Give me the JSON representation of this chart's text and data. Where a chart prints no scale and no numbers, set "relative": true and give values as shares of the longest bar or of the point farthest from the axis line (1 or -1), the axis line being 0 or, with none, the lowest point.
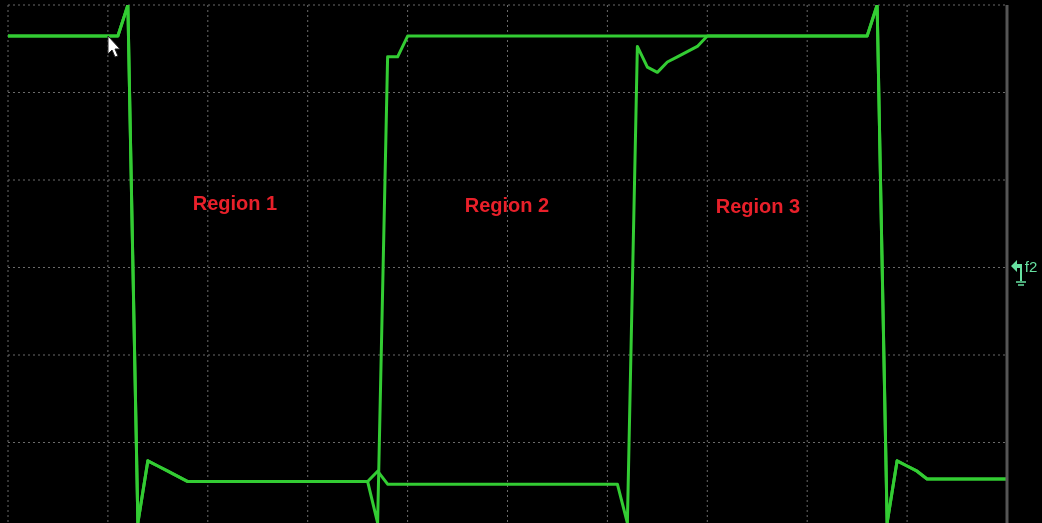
{
  "chart_data": {
    "type": "line",
    "relative": true,
    "grid": true,
    "tick_labels": false,
    "marker": "none",
    "line_style": "solid",
    "categories": [
      null,
      null,
      null,
      null,
      null,
      null,
      null,
      null,
      null,
      null,
      null,
      null,
      null,
      null,
      null,
      null,
      null,
      null,
      null,
      null,
      null,
      null,
      null,
      null,
      null,
      null,
      null,
      null,
      null,
      null,
      null,
      null,
      null,
      null,
      null,
      null,
      null,
      null,
      null,
      null,
      null,
      null,
      null,
      null,
      null,
      null,
      null,
      null,
      null,
      null,
      null,
      null,
      null,
      null,
      null,
      null,
      null,
      null,
      null,
      null,
      null,
      null,
      null,
      null,
      null,
      null,
      null,
      null,
      null,
      null,
      null,
      null,
      null,
      null,
      null,
      null,
      null,
      null,
      null,
      null,
      null,
      null,
      null,
      null,
      null,
      null,
      null,
      null,
      null,
      null,
      null,
      null,
      null,
      null,
      null,
      null,
      null,
      null,
      null,
      null,
      null
    ],
    "series": [
      {
        "color": "#33cc33",
        "values": [
          0.94,
          0.94,
          0.94,
          0.94,
          0.94,
          0.94,
          0.94,
          0.94,
          0.94,
          0.94,
          0.94,
          0.94,
          1,
          0,
          0.12,
          0.11,
          0.1,
          0.09,
          0.08,
          0.08,
          0.08,
          0.08,
          0.08,
          0.08,
          0.08,
          0.08,
          0.08,
          0.08,
          0.08,
          0.08,
          0.08,
          0.08,
          0.08,
          0.08,
          0.08,
          0.08,
          0.08,
          0,
          0.9,
          0.9,
          0.94,
          0.94,
          0.94,
          0.94,
          0.94,
          0.94,
          0.94,
          0.94,
          0.94,
          0.94,
          0.94,
          0.94,
          0.94,
          0.94,
          0.94,
          0.94,
          0.94,
          0.94,
          0.94,
          0.94,
          0.94,
          0.94,
          0.94,
          0.94,
          0.94,
          0.94,
          0.94,
          0.94,
          0.94,
          0.94,
          0.94,
          0.94,
          0.94,
          0.94,
          0.94,
          0.94,
          0.94,
          0.94,
          0.94,
          0.94,
          0.94,
          0.94,
          0.94,
          0.94,
          0.94,
          0.94,
          0.94,
          1,
          0,
          0.12,
          0.11,
          0.1,
          0.085,
          0.085,
          0.085,
          0.085,
          0.085,
          0.085,
          0.085,
          0.085,
          0.085
        ]
      },
      {
        "color": "#33cc33",
        "values": [
          0.94,
          0.94,
          0.94,
          0.94,
          0.94,
          0.94,
          0.94,
          0.94,
          0.94,
          0.94,
          0.94,
          0.94,
          1,
          0,
          0.12,
          0.11,
          0.1,
          0.09,
          0.08,
          0.08,
          0.08,
          0.08,
          0.08,
          0.08,
          0.08,
          0.08,
          0.08,
          0.08,
          0.08,
          0.08,
          0.08,
          0.08,
          0.08,
          0.08,
          0.08,
          0.08,
          0.08,
          0.1,
          0.075,
          0.075,
          0.075,
          0.075,
          0.075,
          0.075,
          0.075,
          0.075,
          0.075,
          0.075,
          0.075,
          0.075,
          0.075,
          0.075,
          0.075,
          0.075,
          0.075,
          0.075,
          0.075,
          0.075,
          0.075,
          0.075,
          0.075,
          0.075,
          0,
          0.92,
          0.88,
          0.87,
          0.89,
          0.9,
          0.91,
          0.92,
          0.94,
          0.94,
          0.94,
          0.94,
          0.94,
          0.94,
          0.94,
          0.94,
          0.94,
          0.94,
          0.94,
          0.94,
          0.94,
          0.94,
          0.94,
          0.94,
          0.94,
          1,
          0,
          0.12,
          0.11,
          0.1,
          0.085,
          0.085,
          0.085,
          0.085,
          0.085,
          0.085,
          0.085,
          0.085,
          0.085
        ]
      }
    ],
    "annotations": [
      "Region 1",
      "Region 2",
      "Region 3",
      "f2"
    ]
  }
}
